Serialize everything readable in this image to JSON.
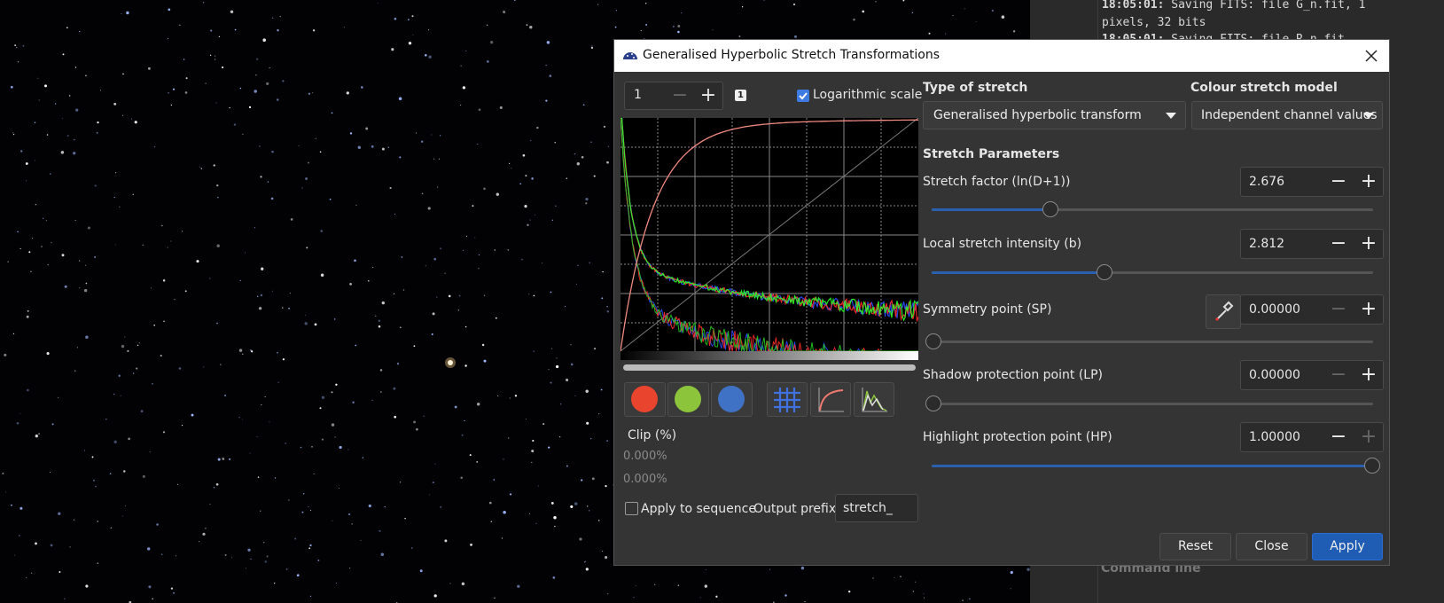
{
  "log": {
    "lines": [
      {
        "time": "18:05:01:",
        "text": " Saving FITS: file G_n.fit, 1"
      },
      {
        "time": "",
        "text": "pixels, 32 bits"
      },
      {
        "time": "18:05:01:",
        "text": " Saving FITS: file R_n.fit,"
      }
    ],
    "command_line": "Command line"
  },
  "dialog": {
    "title": "Generalised Hyperbolic Stretch Transformations",
    "zoom": "1",
    "channel_badge": "1",
    "log_scale": "Logarithmic scale",
    "type_of_stretch": {
      "label": "Type of stretch",
      "value": "Generalised hyperbolic transform"
    },
    "colour_model": {
      "label": "Colour stretch model",
      "value": "Independent channel values"
    },
    "section": "Stretch Parameters",
    "params": [
      {
        "label": "Stretch factor (ln(D+1))",
        "value": "2.676"
      },
      {
        "label": "Local stretch intensity (b)",
        "value": "2.812"
      },
      {
        "label": "Symmetry point (SP)",
        "value": "0.00000"
      },
      {
        "label": "Shadow protection point (LP)",
        "value": "0.00000"
      },
      {
        "label": "Highlight protection point (HP)",
        "value": "1.00000"
      }
    ],
    "clip": {
      "label": "Clip (%)",
      "values": [
        "0.000%",
        "0.000%"
      ]
    },
    "apply_to_sequence": "Apply to sequence",
    "output_prefix": {
      "label": "Output prefix:",
      "value": "stretch_"
    },
    "buttons": [
      "Reset",
      "Close",
      "Apply"
    ]
  }
}
